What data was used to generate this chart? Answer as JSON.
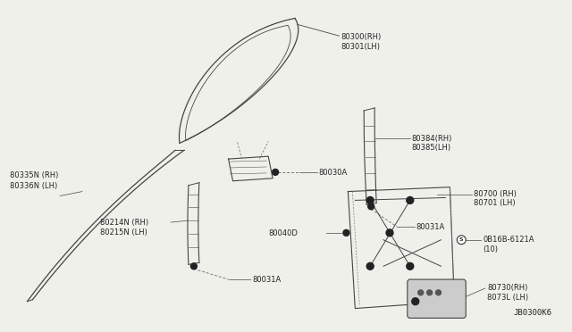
{
  "bg_color": "#f0f0eb",
  "line_color": "#444444",
  "text_color": "#222222",
  "diagram_id": "JB0300K6",
  "parts": [
    {
      "id": "80300(RH)",
      "id2": "80301(LH)"
    },
    {
      "id": "80335N (RH)",
      "id2": "80336N (LH)"
    },
    {
      "id": "80384(RH)",
      "id2": "80385(LH)"
    },
    {
      "id": "80031A",
      "id2": ""
    },
    {
      "id": "80030A",
      "id2": ""
    },
    {
      "id": "80214N (RH)",
      "id2": "80215N (LH)"
    },
    {
      "id": "80031A",
      "id2": ""
    },
    {
      "id": "80040D",
      "id2": ""
    },
    {
      "id": "80700 (RH)",
      "id2": "80701 (LH)"
    },
    {
      "id": "0B16B-6121A",
      "id2": "(10)"
    },
    {
      "id": "80730(RH)",
      "id2": "8073L (LH)"
    }
  ]
}
